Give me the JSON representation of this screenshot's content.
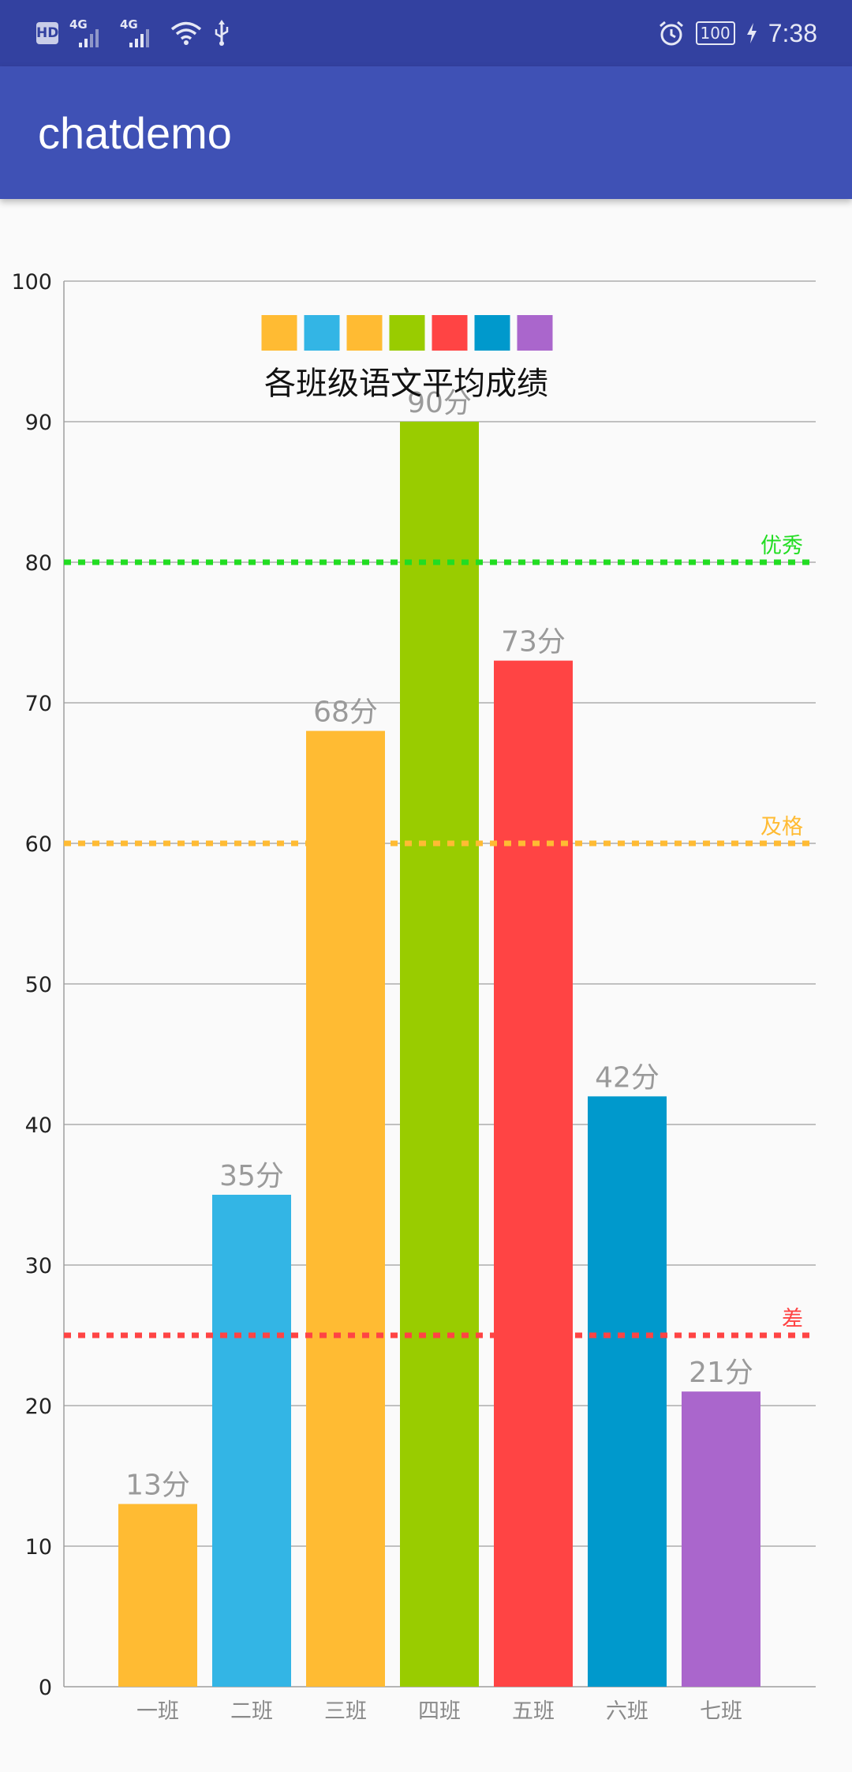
{
  "status_bar": {
    "network_label_1": "4G",
    "network_label_2": "4G",
    "hd_label": "HD",
    "battery": "100",
    "time": "7:38",
    "icons": [
      "hd-icon",
      "signal-4g-icon",
      "signal-4g-icon",
      "wifi-icon",
      "usb-icon",
      "alarm-icon",
      "battery-icon",
      "charging-icon"
    ]
  },
  "app_bar": {
    "title": "chatdemo"
  },
  "chart_data": {
    "type": "bar",
    "title": "各班级语文平均成绩",
    "categories": [
      "一班",
      "二班",
      "三班",
      "四班",
      "五班",
      "六班",
      "七班"
    ],
    "values": [
      13,
      35,
      68,
      90,
      73,
      42,
      21
    ],
    "value_labels": [
      "13分",
      "35分",
      "68分",
      "90分",
      "73分",
      "42分",
      "21分"
    ],
    "colors": [
      "#ffbb33",
      "#33b5e5",
      "#ffbb33",
      "#99cc00",
      "#ff4444",
      "#0099cc",
      "#aa66cc"
    ],
    "legend_colors": [
      "#ffbb33",
      "#33b5e5",
      "#ffbb33",
      "#99cc00",
      "#ff4444",
      "#0099cc",
      "#aa66cc"
    ],
    "legend_position": "top-center",
    "ylim": [
      0,
      100
    ],
    "yticks": [
      0,
      10,
      20,
      30,
      40,
      50,
      60,
      70,
      80,
      90,
      100
    ],
    "grid": true,
    "reference_lines": [
      {
        "label": "优秀",
        "value": 80,
        "color": "#22dd22"
      },
      {
        "label": "及格",
        "value": 60,
        "color": "#ffbb33"
      },
      {
        "label": "差",
        "value": 25,
        "color": "#ff4444"
      }
    ]
  }
}
